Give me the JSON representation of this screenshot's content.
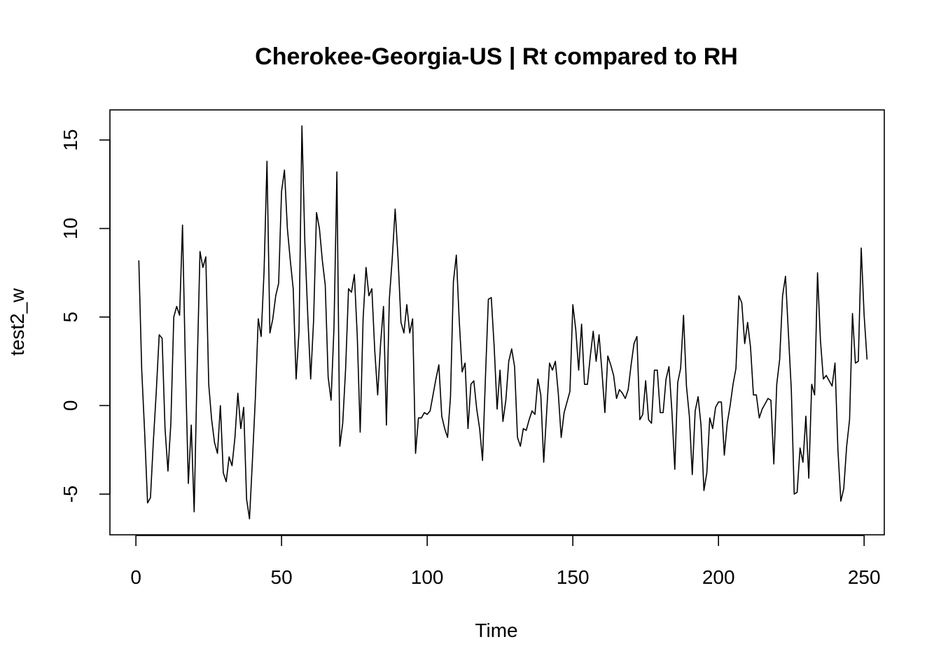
{
  "chart_data": {
    "type": "line",
    "title": "Cherokee-Georgia-US | Rt compared to RH",
    "xlabel": "Time",
    "ylabel": "test2_w",
    "xlim": [
      -8.92,
      256.92
    ],
    "ylim": [
      -7.3,
      16.7
    ],
    "x_ticks": [
      0,
      50,
      100,
      150,
      200,
      250
    ],
    "y_ticks": [
      -5,
      0,
      5,
      10,
      15
    ],
    "grid": false,
    "legend": "none",
    "line_color": "#000000",
    "series": [
      {
        "x_start": 1,
        "values": [
          8.2,
          2.0,
          -1.5,
          -5.5,
          -5.2,
          -2.0,
          0.8,
          4.0,
          3.8,
          -1.3,
          -3.7,
          -1.0,
          5.0,
          5.6,
          5.1,
          10.2,
          2.2,
          -4.4,
          -1.1,
          -6.0,
          1.9,
          8.7,
          7.8,
          8.4,
          1.2,
          -0.8,
          -2.1,
          -2.7,
          0.0,
          -3.8,
          -4.3,
          -2.9,
          -3.4,
          -1.8,
          0.7,
          -1.3,
          -0.1,
          -5.3,
          -6.4,
          -3.1,
          0.4,
          4.9,
          3.9,
          7.6,
          13.8,
          4.1,
          4.9,
          6.2,
          6.9,
          12.1,
          13.3,
          10.0,
          8.2,
          6.6,
          1.5,
          4.2,
          15.8,
          9.2,
          5.1,
          1.5,
          4.8,
          10.9,
          10.0,
          8.2,
          6.8,
          1.6,
          0.3,
          4.4,
          13.2,
          -2.3,
          -1.0,
          2.1,
          6.6,
          6.4,
          7.4,
          3.9,
          -1.5,
          4.9,
          7.8,
          6.2,
          6.6,
          3.1,
          0.6,
          3.5,
          5.6,
          -1.1,
          6.0,
          8.3,
          11.1,
          8.3,
          4.7,
          4.1,
          5.7,
          4.1,
          4.9,
          -2.7,
          -0.7,
          -0.7,
          -0.4,
          -0.5,
          -0.3,
          0.6,
          1.5,
          2.3,
          -0.6,
          -1.3,
          -1.8,
          0.5,
          7.0,
          8.5,
          4.8,
          1.9,
          2.4,
          -1.3,
          1.2,
          1.4,
          -0.2,
          -1.3,
          -3.1,
          1.6,
          6.0,
          6.1,
          3.3,
          -0.2,
          2.0,
          -0.9,
          0.3,
          2.5,
          3.2,
          2.2,
          -1.8,
          -2.3,
          -1.3,
          -1.4,
          -0.8,
          -0.3,
          -0.5,
          1.5,
          0.6,
          -3.2,
          -0.4,
          2.4,
          2.0,
          2.5,
          0.7,
          -1.8,
          -0.4,
          0.2,
          0.8,
          5.7,
          4.3,
          2.0,
          4.6,
          1.2,
          1.2,
          2.8,
          4.2,
          2.5,
          4.0,
          1.9,
          -0.4,
          2.8,
          2.3,
          1.7,
          0.4,
          0.9,
          0.7,
          0.4,
          0.9,
          2.3,
          3.5,
          3.9,
          -0.8,
          -0.5,
          1.4,
          -0.8,
          -1.0,
          2.0,
          2.0,
          -0.4,
          -0.4,
          1.5,
          2.2,
          -0.3,
          -3.6,
          1.3,
          2.1,
          5.1,
          1.1,
          -0.6,
          -3.9,
          -0.3,
          0.5,
          -1.1,
          -4.8,
          -3.8,
          -0.7,
          -1.3,
          -0.1,
          0.2,
          0.2,
          -2.8,
          -1.0,
          0.0,
          1.2,
          2.1,
          6.2,
          5.8,
          3.5,
          4.7,
          3.3,
          0.6,
          0.6,
          -0.7,
          -0.2,
          0.1,
          0.4,
          0.3,
          -3.3,
          1.2,
          2.6,
          6.2,
          7.3,
          4.1,
          0.9,
          -5.0,
          -4.9,
          -2.4,
          -3.2,
          -0.6,
          -4.1,
          1.2,
          0.6,
          7.5,
          3.7,
          1.5,
          1.7,
          1.4,
          1.1,
          2.4,
          -2.5,
          -5.4,
          -4.7,
          -2.3,
          -0.8,
          5.2,
          2.4,
          2.5,
          8.9,
          5.1,
          2.6
        ]
      }
    ]
  }
}
